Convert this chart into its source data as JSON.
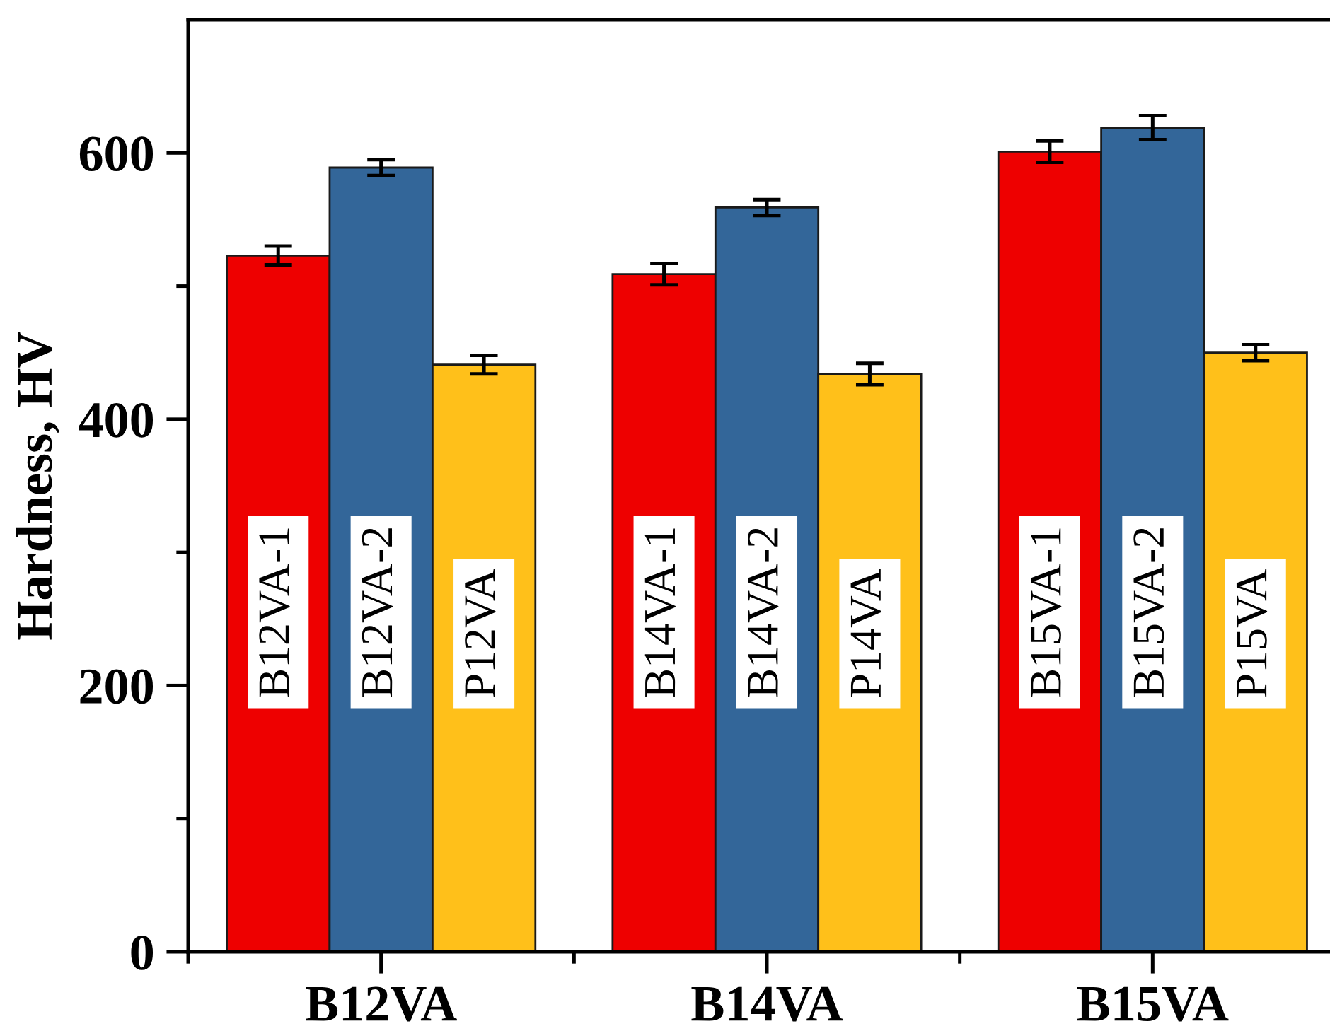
{
  "chart_data": {
    "type": "bar",
    "ylabel": "Hardness, HV",
    "categories": [
      "B12VA",
      "B14VA",
      "B15VA"
    ],
    "series": [
      {
        "color": "#ee0000",
        "values": [
          523,
          509,
          601
        ],
        "errors": [
          7,
          8,
          8
        ],
        "value_labels": [
          "B12VA-1",
          "B14VA-1",
          "B15VA-1"
        ]
      },
      {
        "color": "#336699",
        "values": [
          589,
          559,
          619
        ],
        "errors": [
          6,
          6,
          9
        ],
        "value_labels": [
          "B12VA-2",
          "B14VA-2",
          "B15VA-2"
        ]
      },
      {
        "color": "#ffc01a",
        "values": [
          441,
          434,
          450
        ],
        "errors": [
          7,
          8,
          6
        ],
        "value_labels": [
          "P12VA",
          "P14VA",
          "P15VA"
        ]
      }
    ],
    "ylim": [
      0,
      700
    ],
    "yticks": [
      0,
      200,
      400,
      600
    ]
  }
}
